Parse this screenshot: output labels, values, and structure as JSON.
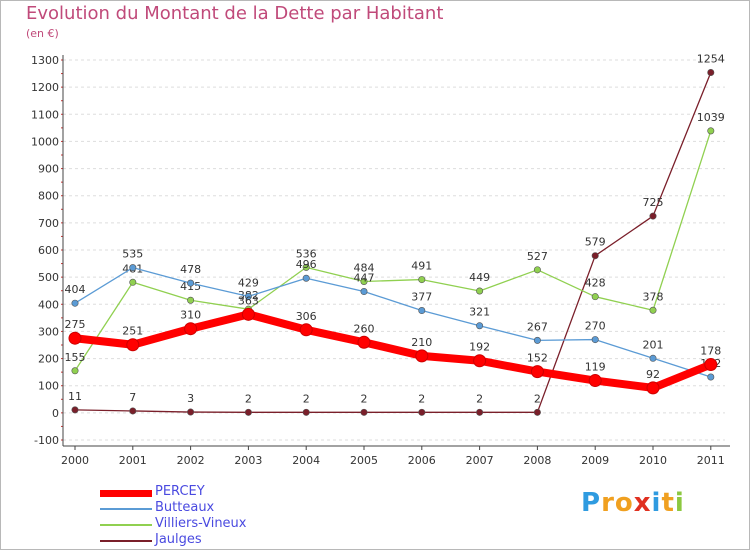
{
  "title": "Evolution du Montant de la Dette par Habitant",
  "subtitle": "(en €)",
  "logo": {
    "letters": [
      "P",
      "r",
      "o",
      "x",
      "i",
      "t",
      "i"
    ],
    "colors": [
      "#2f9be0",
      "#f0a020",
      "#f0a020",
      "#e03020",
      "#2f9be0",
      "#f0a020",
      "#8cc840"
    ]
  },
  "colors": {
    "title": "#c04a7a",
    "legend_text": "#4a4ae0",
    "grid": "#dddddd"
  },
  "chart_data": {
    "type": "line",
    "x": [
      "2000",
      "2001",
      "2002",
      "2003",
      "2004",
      "2005",
      "2006",
      "2007",
      "2008",
      "2009",
      "2010",
      "2011"
    ],
    "ylim": [
      -100,
      1300
    ],
    "yticks": [
      "-100",
      "0",
      "100",
      "200",
      "300",
      "400",
      "500",
      "600",
      "700",
      "800",
      "900",
      "1000",
      "1100",
      "1200",
      "1300"
    ],
    "grid": "horizontal dashed",
    "legend_position": "bottom-left",
    "series": [
      {
        "name": "Jaulges",
        "color": "#7a1f2a",
        "values": [
          11,
          7,
          3,
          2,
          2,
          2,
          2,
          2,
          2,
          579,
          725,
          1254
        ],
        "labels": [
          "11",
          "7",
          "3",
          "2",
          "2",
          "2",
          "2",
          "2",
          "2",
          "579",
          "725",
          "1254"
        ]
      },
      {
        "name": "Villiers-Vineux",
        "color": "#90d050",
        "values": [
          155,
          481,
          415,
          382,
          536,
          484,
          491,
          449,
          527,
          428,
          378,
          1039
        ],
        "labels": [
          "155",
          "481",
          "415",
          "382",
          "536",
          "484",
          "491",
          "449",
          "527",
          "428",
          "378",
          "1039"
        ]
      },
      {
        "name": "Butteaux",
        "color": "#5b9bd5",
        "values": [
          404,
          535,
          478,
          429,
          496,
          447,
          377,
          321,
          267,
          270,
          201,
          132
        ],
        "labels": [
          "404",
          "535",
          "478",
          "429",
          "496",
          "447",
          "377",
          "321",
          "267",
          "270",
          "201",
          "132"
        ]
      },
      {
        "name": "PERCEY",
        "color": "#ff0000",
        "values": [
          275,
          251,
          310,
          363,
          306,
          260,
          210,
          192,
          152,
          119,
          92,
          178
        ],
        "labels": [
          "275",
          "251",
          "310",
          "363",
          "306",
          "260",
          "210",
          "192",
          "152",
          "119",
          "92",
          "178"
        ]
      }
    ],
    "legend": [
      "PERCEY",
      "Butteaux",
      "Villiers-Vineux",
      "Jaulges"
    ]
  }
}
